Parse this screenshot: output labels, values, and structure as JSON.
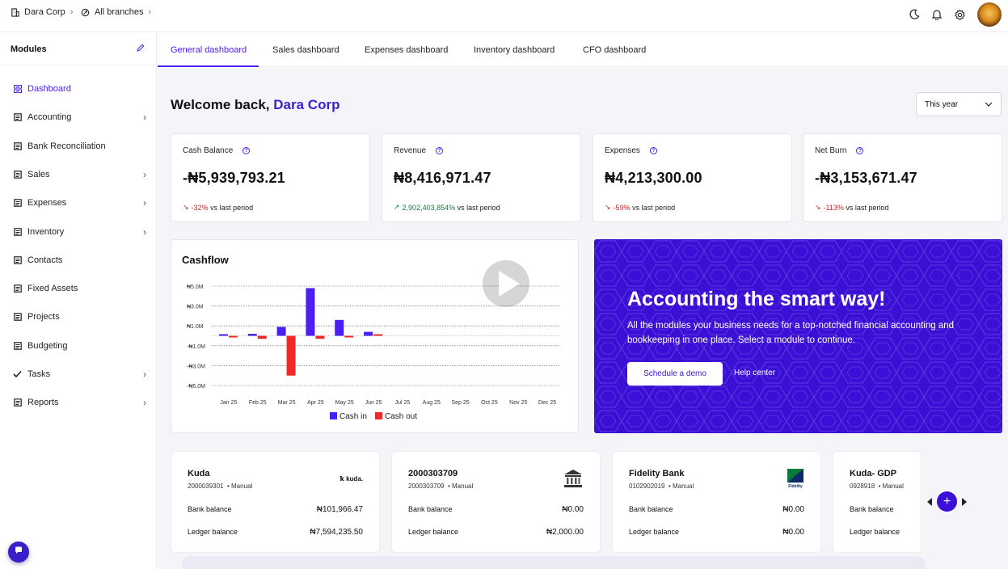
{
  "topbar": {
    "org_name": "Dara Corp",
    "branch": "All branches",
    "icons": [
      "building-icon",
      "branch-icon",
      "moon-icon",
      "bell-icon",
      "gear-icon",
      "avatar"
    ]
  },
  "sidebar": {
    "header": "Modules",
    "items": [
      {
        "label": "Dashboard",
        "icon": "grid-icon",
        "active": true,
        "expandable": false
      },
      {
        "label": "Accounting",
        "icon": "ledger-icon",
        "expandable": true
      },
      {
        "label": "Bank Reconciliation",
        "icon": "bank-icon",
        "expandable": false
      },
      {
        "label": "Sales",
        "icon": "sales-icon",
        "expandable": true
      },
      {
        "label": "Expenses",
        "icon": "expenses-icon",
        "expandable": true
      },
      {
        "label": "Inventory",
        "icon": "inventory-icon",
        "expandable": true
      },
      {
        "label": "Contacts",
        "icon": "contacts-icon",
        "expandable": false
      },
      {
        "label": "Fixed Assets",
        "icon": "assets-icon",
        "expandable": false
      },
      {
        "label": "Projects",
        "icon": "projects-icon",
        "expandable": false
      },
      {
        "label": "Budgeting",
        "icon": "budget-icon",
        "expandable": false
      },
      {
        "label": "Tasks",
        "icon": "tasks-icon",
        "expandable": true
      },
      {
        "label": "Reports",
        "icon": "reports-icon",
        "expandable": true
      }
    ]
  },
  "tabs": [
    {
      "label": "General dashboard",
      "active": true
    },
    {
      "label": "Sales dashboard"
    },
    {
      "label": "Expenses dashboard"
    },
    {
      "label": "Inventory dashboard"
    },
    {
      "label": "CFO dashboard"
    }
  ],
  "welcome": {
    "prefix": "Welcome back,",
    "org": "Dara Corp"
  },
  "period_select": {
    "value": "This year"
  },
  "stats": [
    {
      "title": "Cash Balance",
      "value": "-₦5,939,793.21",
      "change": "-32%",
      "direction": "down",
      "suffix": "vs last period"
    },
    {
      "title": "Revenue",
      "value": "₦8,416,971.47",
      "change": "2,902,403,854%",
      "direction": "up",
      "suffix": "vs last period"
    },
    {
      "title": "Expenses",
      "value": "₦4,213,300.00",
      "change": "-59%",
      "direction": "down",
      "suffix": "vs last period"
    },
    {
      "title": "Net Burn",
      "value": "-₦3,153,671.47",
      "change": "-113%",
      "direction": "down",
      "suffix": "vs last period"
    }
  ],
  "colors": {
    "accent": "#4a1ff0",
    "promo_bg": "#3b0fd6",
    "cash_in": "#4a1ff0",
    "cash_out": "#f02828",
    "negative": "#c62828",
    "positive": "#1b7a3a"
  },
  "chart_data": {
    "type": "bar",
    "title": "Cashflow",
    "categories": [
      "Jan 25",
      "Feb 25",
      "Mar 25",
      "Apr 25",
      "May 25",
      "Jun 25",
      "Jul 25",
      "Aug 25",
      "Sep 25",
      "Oct 25",
      "Nov 25",
      "Dec 25"
    ],
    "series": [
      {
        "name": "Cash in",
        "values": [
          0,
          0.2,
          0.9,
          4.8,
          1.6,
          0.4,
          null,
          null,
          null,
          null,
          null,
          null
        ]
      },
      {
        "name": "Cash out",
        "values": [
          -0.1,
          -0.3,
          -4.0,
          -0.3,
          -0.1,
          0,
          null,
          null,
          null,
          null,
          null,
          null
        ]
      }
    ],
    "y_ticks": [
      "₦5.0M",
      "₦3.0M",
      "₦1.0M",
      "-₦1.0M",
      "-₦3.0M",
      "-₦5.0M"
    ],
    "y_tick_values": [
      5,
      3,
      1,
      -1,
      -3,
      -5
    ],
    "ylim": [
      -5,
      5
    ],
    "grid": true,
    "legend_position": "bottom"
  },
  "promo": {
    "title": "Accounting the smart way!",
    "text": "All the modules your business needs for a top-notched financial accounting and bookkeeping in one place. Select a module to continue.",
    "primary_button": "Schedule a demo",
    "link": "Help center"
  },
  "bank_accounts": [
    {
      "name": "Kuda",
      "number": "2000039301",
      "type": "Manual",
      "logo": "kuda-logo",
      "logo_text": "kuda.",
      "bank_balance": "₦101,966.47",
      "ledger_balance": "₦7,594,235.50"
    },
    {
      "name": "2000303709",
      "number": "2000303709",
      "type": "Manual",
      "logo": "bank-building-icon",
      "bank_balance": "₦0.00",
      "ledger_balance": "₦2,000.00"
    },
    {
      "name": "Fidelity Bank",
      "number": "0102902019",
      "type": "Manual",
      "logo": "fidelity-logo",
      "logo_text": "Fidelity",
      "bank_balance": "₦0.00",
      "ledger_balance": "₦0.00"
    },
    {
      "name": "Kuda- GDP",
      "number": "0928918",
      "type": "Manual",
      "logo": "",
      "bank_balance": "",
      "ledger_balance": ""
    }
  ],
  "bank_labels": {
    "bank_balance": "Bank balance",
    "ledger_balance": "Ledger balance",
    "separator": "•"
  }
}
